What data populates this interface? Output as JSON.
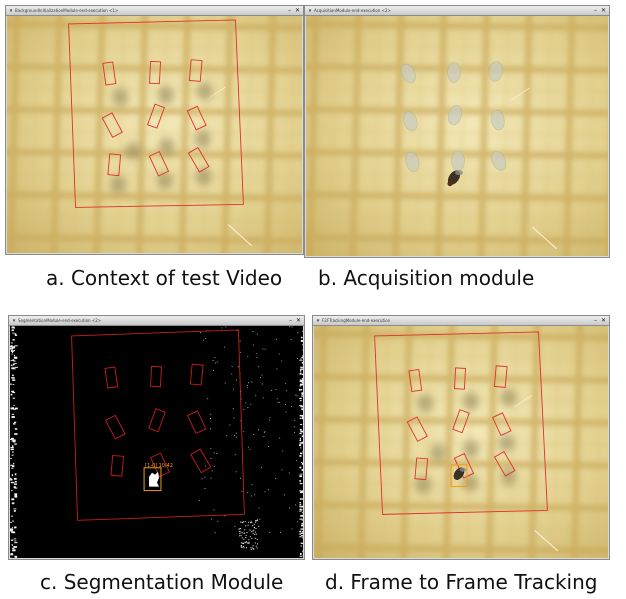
{
  "panels": [
    {
      "id": "a",
      "window_title": "BackgroundInitializationModule-end-execution <1>",
      "caption": "a. Context of test Video"
    },
    {
      "id": "b",
      "window_title": "AcquisitionModule-end-execution <2>",
      "caption": "b. Acquisition module"
    },
    {
      "id": "c",
      "window_title": "SegmentationModule-end-execution <2>",
      "caption": "c. Segmentation Module",
      "blob_label": "[1-0] 10/42"
    },
    {
      "id": "d",
      "window_title": "F2FTrackingModule-end-execution",
      "caption": "d. Frame to Frame Tracking"
    }
  ],
  "window_controls": {
    "minimize": "–",
    "close": "✕"
  },
  "icons": {
    "window_menu": "chevron-down-icon"
  },
  "colors": {
    "zone_outline": "#e0302a",
    "tracking_box": "#f39a1a",
    "background_grid": "#c9a95a",
    "segmentation_bg": "#000000"
  }
}
